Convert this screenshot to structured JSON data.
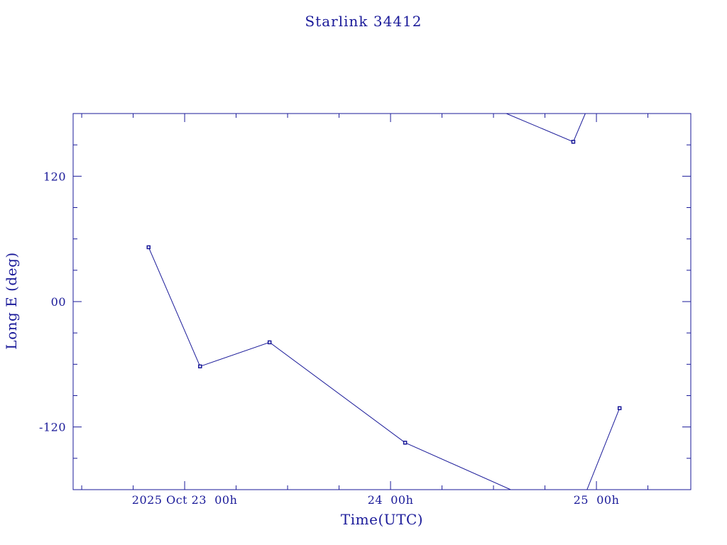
{
  "chart_data": {
    "type": "line",
    "title": "Starlink 34412",
    "xlabel": "Time(UTC)",
    "ylabel": "Long E (deg)",
    "x_unit": "hours",
    "xlim": [
      -13,
      59
    ],
    "ylim": [
      -180,
      180
    ],
    "x_ticks": [
      {
        "value": 0,
        "label": "2025 Oct 23  00h"
      },
      {
        "value": 24,
        "label": "24  00h"
      },
      {
        "value": 48,
        "label": "25  00h"
      }
    ],
    "y_ticks": [
      {
        "value": 120,
        "label": "120"
      },
      {
        "value": 0,
        "label": "00"
      },
      {
        "value": -120,
        "label": "-120"
      }
    ],
    "segments": [
      [
        {
          "x": -4.2,
          "y": 52
        },
        {
          "x": 1.8,
          "y": -62
        },
        {
          "x": 9.9,
          "y": -39
        },
        {
          "x": 25.7,
          "y": -135
        },
        {
          "x": 38.0,
          "y": -180
        }
      ],
      [
        {
          "x": 37.5,
          "y": 180
        },
        {
          "x": 45.3,
          "y": 153
        },
        {
          "x": 46.7,
          "y": 180
        }
      ],
      [
        {
          "x": 46.9,
          "y": -180
        },
        {
          "x": 50.7,
          "y": -102
        }
      ]
    ],
    "markers": [
      {
        "x": -4.2,
        "y": 52
      },
      {
        "x": 1.8,
        "y": -62
      },
      {
        "x": 9.9,
        "y": -39
      },
      {
        "x": 25.7,
        "y": -135
      },
      {
        "x": 45.3,
        "y": 153
      },
      {
        "x": 50.7,
        "y": -102
      }
    ],
    "colors": {
      "ink": "#1a1a99"
    }
  }
}
